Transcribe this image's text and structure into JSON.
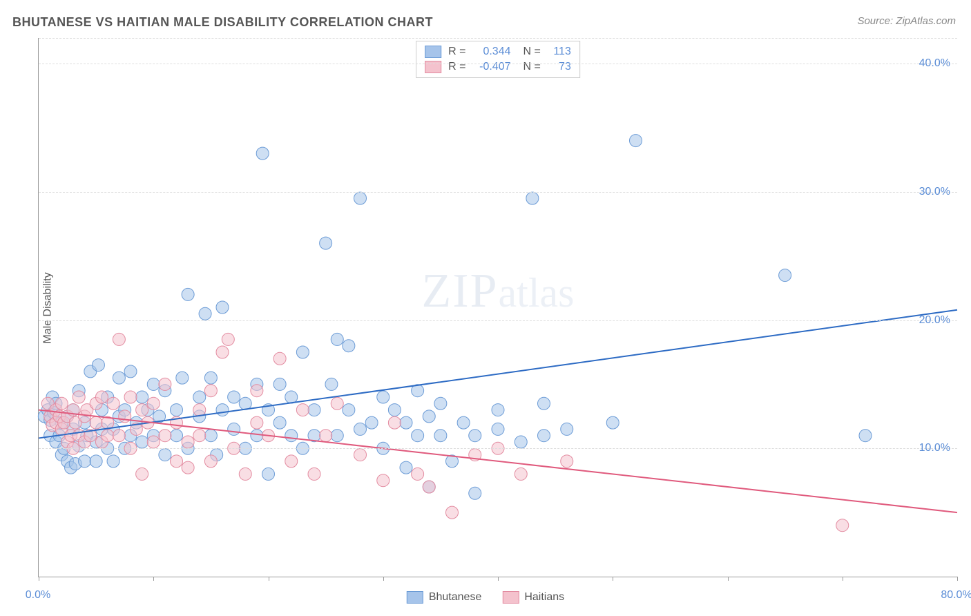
{
  "chart": {
    "type": "scatter",
    "title": "BHUTANESE VS HAITIAN MALE DISABILITY CORRELATION CHART",
    "source_label": "Source: ZipAtlas.com",
    "ylabel": "Male Disability",
    "watermark": "ZIPatlas",
    "background_color": "#ffffff",
    "grid_color": "#e0e0e0",
    "axis_color": "#999999",
    "label_color": "#555555",
    "tick_label_color": "#5b8dd6",
    "title_fontsize": 18,
    "label_fontsize": 16,
    "tick_fontsize": 16,
    "xlim": [
      0,
      80
    ],
    "ylim": [
      0,
      42
    ],
    "x_ticks": [
      0,
      10,
      20,
      30,
      40,
      50,
      60,
      70,
      80
    ],
    "x_tick_labels": {
      "0": "0.0%",
      "80": "80.0%"
    },
    "y_ticks": [
      10,
      20,
      30,
      40
    ],
    "y_tick_labels": {
      "10": "10.0%",
      "20": "20.0%",
      "30": "30.0%",
      "40": "40.0%"
    },
    "y_grid_lines": [
      10,
      20,
      30,
      40,
      42
    ],
    "marker_radius": 9,
    "marker_opacity": 0.55,
    "line_width": 2,
    "series": [
      {
        "name": "Bhutanese",
        "color_fill": "#a6c4ea",
        "color_stroke": "#6b9bd6",
        "line_color": "#2d6bc4",
        "R": "0.344",
        "N": "113",
        "trend_line": {
          "x1": 0,
          "y1": 10.8,
          "x2": 80,
          "y2": 20.8
        },
        "points": [
          [
            0.5,
            12.5
          ],
          [
            0.8,
            13.0
          ],
          [
            1.0,
            12.2
          ],
          [
            1.0,
            11.0
          ],
          [
            1.2,
            14.0
          ],
          [
            1.3,
            12.8
          ],
          [
            1.5,
            10.5
          ],
          [
            1.5,
            13.5
          ],
          [
            1.8,
            11.0
          ],
          [
            2.0,
            12.0
          ],
          [
            2.0,
            9.5
          ],
          [
            2.2,
            10.0
          ],
          [
            2.5,
            12.5
          ],
          [
            2.5,
            9.0
          ],
          [
            2.8,
            8.5
          ],
          [
            3.0,
            11.5
          ],
          [
            3.0,
            13.0
          ],
          [
            3.2,
            8.8
          ],
          [
            3.5,
            10.2
          ],
          [
            3.5,
            14.5
          ],
          [
            4.0,
            9.0
          ],
          [
            4.0,
            12.0
          ],
          [
            4.2,
            11.0
          ],
          [
            4.5,
            16.0
          ],
          [
            5.0,
            10.5
          ],
          [
            5.0,
            9.0
          ],
          [
            5.2,
            16.5
          ],
          [
            5.5,
            11.5
          ],
          [
            5.5,
            13.0
          ],
          [
            6.0,
            10.0
          ],
          [
            6.0,
            14.0
          ],
          [
            6.5,
            11.5
          ],
          [
            6.5,
            9.0
          ],
          [
            7.0,
            12.5
          ],
          [
            7.0,
            15.5
          ],
          [
            7.5,
            10.0
          ],
          [
            7.5,
            13.0
          ],
          [
            8.0,
            11.0
          ],
          [
            8.0,
            16.0
          ],
          [
            8.5,
            12.0
          ],
          [
            9.0,
            14.0
          ],
          [
            9.0,
            10.5
          ],
          [
            9.5,
            13.0
          ],
          [
            10.0,
            11.0
          ],
          [
            10.0,
            15.0
          ],
          [
            10.5,
            12.5
          ],
          [
            11.0,
            9.5
          ],
          [
            11.0,
            14.5
          ],
          [
            12.0,
            13.0
          ],
          [
            12.0,
            11.0
          ],
          [
            12.5,
            15.5
          ],
          [
            13.0,
            10.0
          ],
          [
            13.0,
            22.0
          ],
          [
            14.0,
            12.5
          ],
          [
            14.0,
            14.0
          ],
          [
            14.5,
            20.5
          ],
          [
            15.0,
            11.0
          ],
          [
            15.0,
            15.5
          ],
          [
            15.5,
            9.5
          ],
          [
            16.0,
            13.0
          ],
          [
            16.0,
            21.0
          ],
          [
            17.0,
            11.5
          ],
          [
            17.0,
            14.0
          ],
          [
            18.0,
            13.5
          ],
          [
            18.0,
            10.0
          ],
          [
            19.0,
            15.0
          ],
          [
            19.0,
            11.0
          ],
          [
            19.5,
            33.0
          ],
          [
            20.0,
            13.0
          ],
          [
            20.0,
            8.0
          ],
          [
            21.0,
            12.0
          ],
          [
            21.0,
            15.0
          ],
          [
            22.0,
            11.0
          ],
          [
            22.0,
            14.0
          ],
          [
            23.0,
            10.0
          ],
          [
            23.0,
            17.5
          ],
          [
            24.0,
            13.0
          ],
          [
            24.0,
            11.0
          ],
          [
            25.0,
            26.0
          ],
          [
            25.5,
            15.0
          ],
          [
            26.0,
            18.5
          ],
          [
            26.0,
            11.0
          ],
          [
            27.0,
            13.0
          ],
          [
            27.0,
            18.0
          ],
          [
            28.0,
            11.5
          ],
          [
            28.0,
            29.5
          ],
          [
            29.0,
            12.0
          ],
          [
            30.0,
            14.0
          ],
          [
            30.0,
            10.0
          ],
          [
            31.0,
            13.0
          ],
          [
            32.0,
            8.5
          ],
          [
            32.0,
            12.0
          ],
          [
            33.0,
            11.0
          ],
          [
            33.0,
            14.5
          ],
          [
            34.0,
            7.0
          ],
          [
            34.0,
            12.5
          ],
          [
            35.0,
            11.0
          ],
          [
            35.0,
            13.5
          ],
          [
            36.0,
            9.0
          ],
          [
            37.0,
            12.0
          ],
          [
            38.0,
            11.0
          ],
          [
            38.0,
            6.5
          ],
          [
            40.0,
            13.0
          ],
          [
            40.0,
            11.5
          ],
          [
            42.0,
            10.5
          ],
          [
            43.0,
            29.5
          ],
          [
            44.0,
            11.0
          ],
          [
            44.0,
            13.5
          ],
          [
            46.0,
            11.5
          ],
          [
            50.0,
            12.0
          ],
          [
            52.0,
            34.0
          ],
          [
            65.0,
            23.5
          ],
          [
            72.0,
            11.0
          ]
        ]
      },
      {
        "name": "Haitians",
        "color_fill": "#f4c2cd",
        "color_stroke": "#e38ba0",
        "line_color": "#e05a7d",
        "R": "-0.407",
        "N": "73",
        "trend_line": {
          "x1": 0,
          "y1": 13.0,
          "x2": 80,
          "y2": 5.0
        },
        "points": [
          [
            0.8,
            13.5
          ],
          [
            1.0,
            12.5
          ],
          [
            1.2,
            11.8
          ],
          [
            1.5,
            13.0
          ],
          [
            1.5,
            12.0
          ],
          [
            1.8,
            12.5
          ],
          [
            2.0,
            11.5
          ],
          [
            2.0,
            13.5
          ],
          [
            2.2,
            12.0
          ],
          [
            2.5,
            10.5
          ],
          [
            2.5,
            12.5
          ],
          [
            2.8,
            11.0
          ],
          [
            3.0,
            13.0
          ],
          [
            3.0,
            10.0
          ],
          [
            3.2,
            12.0
          ],
          [
            3.5,
            11.0
          ],
          [
            3.5,
            14.0
          ],
          [
            4.0,
            12.5
          ],
          [
            4.0,
            10.5
          ],
          [
            4.2,
            13.0
          ],
          [
            4.5,
            11.0
          ],
          [
            5.0,
            12.0
          ],
          [
            5.0,
            13.5
          ],
          [
            5.5,
            10.5
          ],
          [
            5.5,
            14.0
          ],
          [
            6.0,
            11.0
          ],
          [
            6.0,
            12.0
          ],
          [
            6.5,
            13.5
          ],
          [
            7.0,
            18.5
          ],
          [
            7.0,
            11.0
          ],
          [
            7.5,
            12.5
          ],
          [
            8.0,
            10.0
          ],
          [
            8.0,
            14.0
          ],
          [
            8.5,
            11.5
          ],
          [
            9.0,
            13.0
          ],
          [
            9.0,
            8.0
          ],
          [
            9.5,
            12.0
          ],
          [
            10.0,
            10.5
          ],
          [
            10.0,
            13.5
          ],
          [
            11.0,
            11.0
          ],
          [
            11.0,
            15.0
          ],
          [
            12.0,
            9.0
          ],
          [
            12.0,
            12.0
          ],
          [
            13.0,
            10.5
          ],
          [
            13.0,
            8.5
          ],
          [
            14.0,
            13.0
          ],
          [
            14.0,
            11.0
          ],
          [
            15.0,
            9.0
          ],
          [
            15.0,
            14.5
          ],
          [
            16.0,
            17.5
          ],
          [
            16.5,
            18.5
          ],
          [
            17.0,
            10.0
          ],
          [
            18.0,
            8.0
          ],
          [
            19.0,
            12.0
          ],
          [
            19.0,
            14.5
          ],
          [
            20.0,
            11.0
          ],
          [
            21.0,
            17.0
          ],
          [
            22.0,
            9.0
          ],
          [
            23.0,
            13.0
          ],
          [
            24.0,
            8.0
          ],
          [
            25.0,
            11.0
          ],
          [
            26.0,
            13.5
          ],
          [
            28.0,
            9.5
          ],
          [
            30.0,
            7.5
          ],
          [
            31.0,
            12.0
          ],
          [
            33.0,
            8.0
          ],
          [
            34.0,
            7.0
          ],
          [
            36.0,
            5.0
          ],
          [
            38.0,
            9.5
          ],
          [
            40.0,
            10.0
          ],
          [
            42.0,
            8.0
          ],
          [
            46.0,
            9.0
          ],
          [
            70.0,
            4.0
          ]
        ]
      }
    ],
    "legend_bottom": [
      {
        "label": "Bhutanese",
        "fill": "#a6c4ea",
        "stroke": "#6b9bd6"
      },
      {
        "label": "Haitians",
        "fill": "#f4c2cd",
        "stroke": "#e38ba0"
      }
    ]
  }
}
